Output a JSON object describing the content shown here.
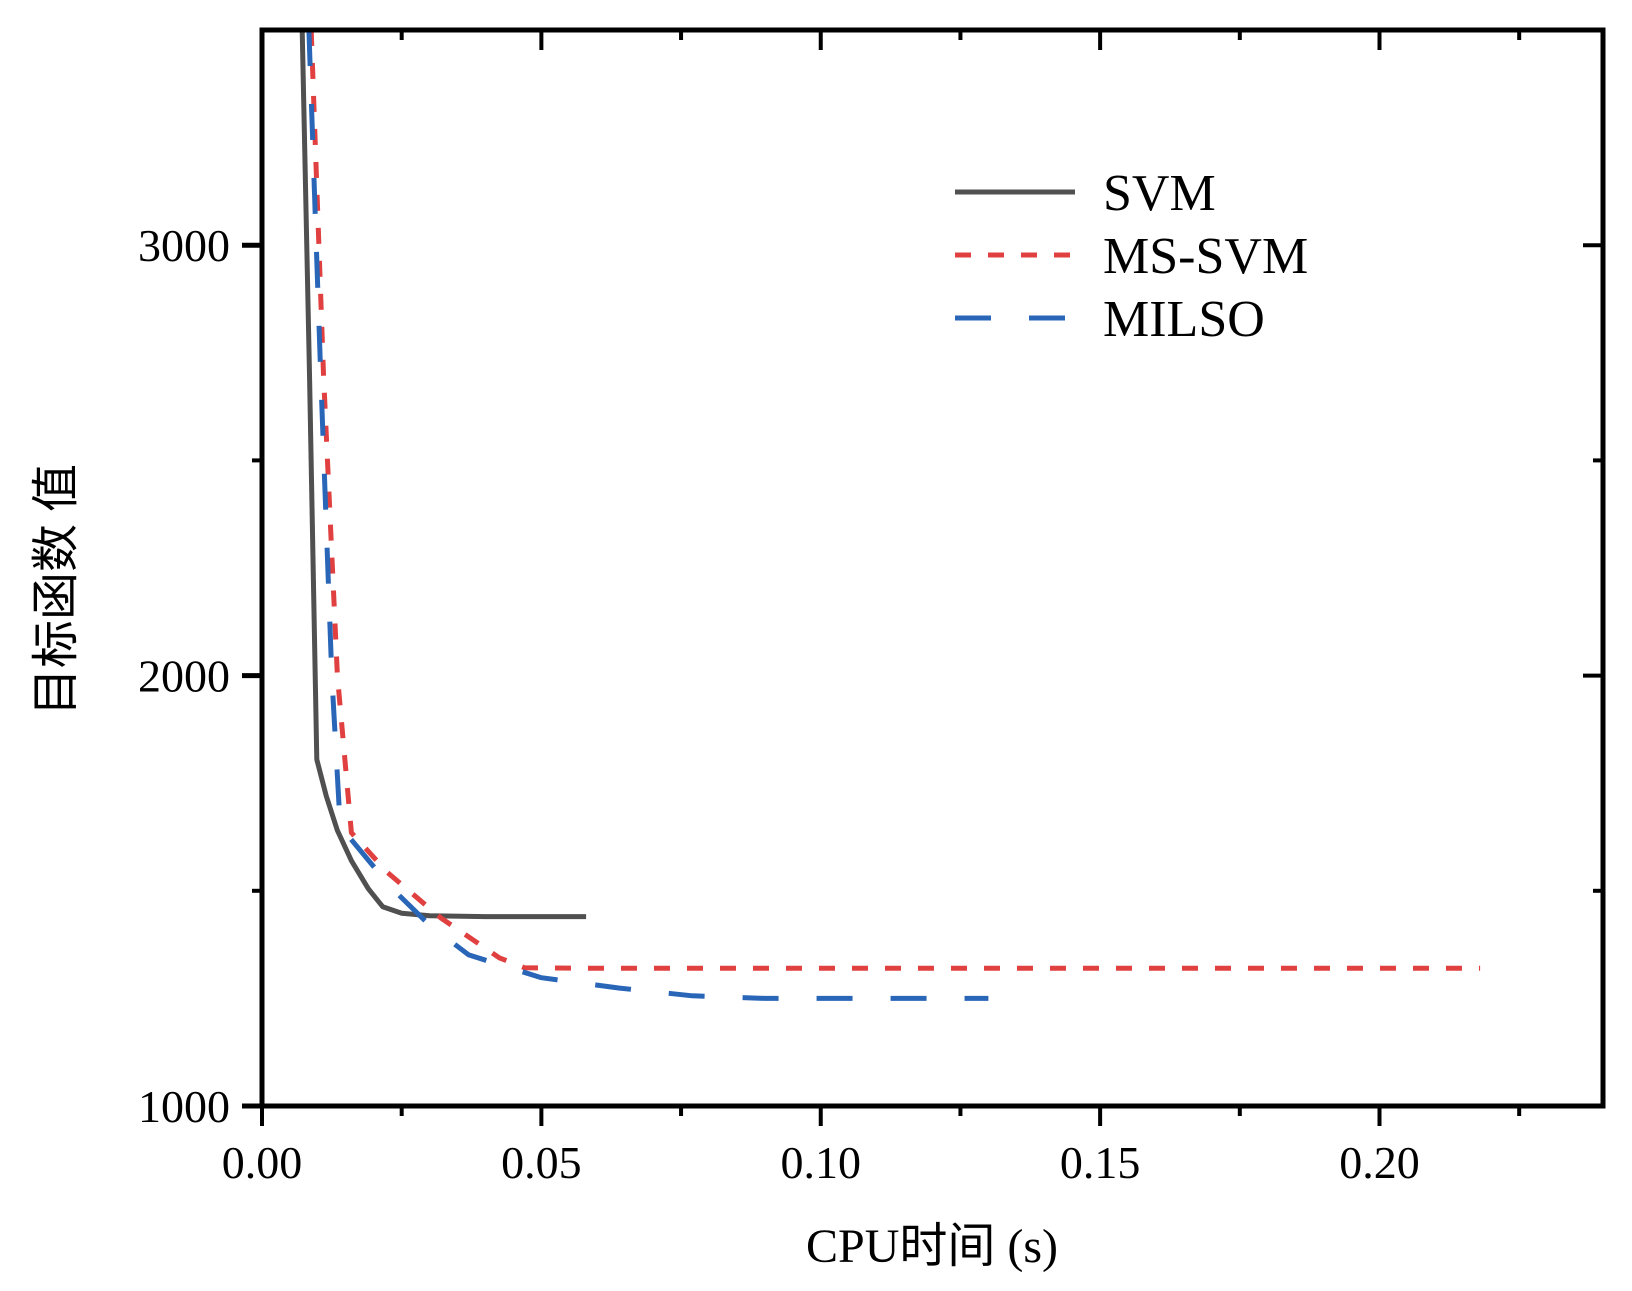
{
  "chart_data": {
    "type": "line",
    "title": "",
    "xlabel": "CPU时间 (s)",
    "ylabel": "目标函数 值",
    "xlim": [
      0,
      0.24
    ],
    "ylim": [
      1000,
      3500
    ],
    "x_major_ticks": [
      0.0,
      0.05,
      0.1,
      0.15,
      0.2
    ],
    "x_minor_ticks": [
      0.025,
      0.075,
      0.125,
      0.175,
      0.225
    ],
    "x_tick_labels": [
      "0.00",
      "0.05",
      "0.10",
      "0.15",
      "0.20"
    ],
    "y_major_ticks": [
      1000,
      2000,
      3000
    ],
    "y_minor_ticks": [
      1500,
      2500
    ],
    "y_tick_labels": [
      "1000",
      "2000",
      "3000"
    ],
    "grid": false,
    "legend_position": "top-right",
    "series": [
      {
        "name": "SVM",
        "color": "#505050",
        "style": "solid",
        "x": [
          0.0072,
          0.0085,
          0.0098,
          0.0115,
          0.0135,
          0.016,
          0.019,
          0.0216,
          0.025,
          0.03,
          0.04,
          0.058
        ],
        "y": [
          3500,
          2700,
          1805,
          1720,
          1640,
          1570,
          1505,
          1463,
          1448,
          1442,
          1440,
          1440
        ]
      },
      {
        "name": "MS-SVM",
        "color": "#e04040",
        "style": "dotted",
        "x": [
          0.0088,
          0.011,
          0.0135,
          0.016,
          0.0225,
          0.032,
          0.0425,
          0.047,
          0.06,
          0.1,
          0.15,
          0.218
        ],
        "y": [
          3500,
          2700,
          2000,
          1635,
          1542,
          1437,
          1344,
          1321,
          1320,
          1320,
          1320,
          1320
        ]
      },
      {
        "name": "MILSO",
        "color": "#2a66b8",
        "style": "dashed",
        "x": [
          0.0084,
          0.0105,
          0.0125,
          0.014,
          0.023,
          0.03,
          0.037,
          0.05,
          0.064,
          0.077,
          0.09,
          0.13
        ],
        "y": [
          3500,
          2700,
          2000,
          1650,
          1509,
          1420,
          1351,
          1298,
          1274,
          1256,
          1250,
          1250
        ]
      }
    ]
  }
}
